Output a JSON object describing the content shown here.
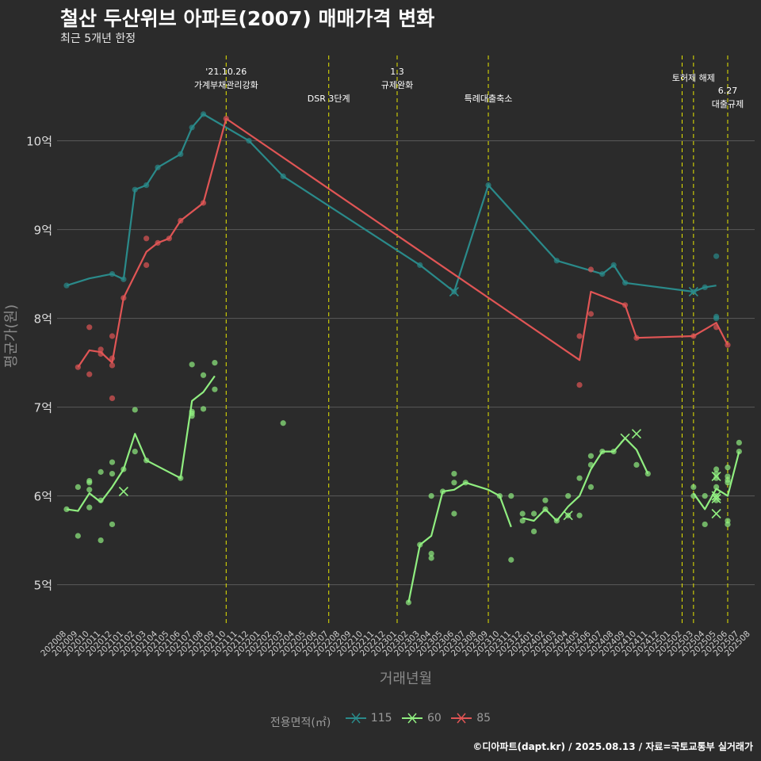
{
  "header": {
    "title": "철산 두산위브 아파트(2007) 매매가격 변화",
    "subtitle": "최근 5개년 한정"
  },
  "caption": "©디아파트(dapt.kr) / 2025.08.13 / 자료=국토교통부 실거래가",
  "legend": {
    "title": "전용면적(㎡)",
    "items": [
      {
        "label": "115",
        "color": "#2a8a8a"
      },
      {
        "label": "60",
        "color": "#90ee80"
      },
      {
        "label": "85",
        "color": "#e05555"
      }
    ]
  },
  "chart_data": {
    "type": "line",
    "xlabel": "거래년월",
    "ylabel": "평균가(원)",
    "ylim": [
      4.55,
      11.05
    ],
    "yticks": [
      {
        "v": 5,
        "label": "5억"
      },
      {
        "v": 6,
        "label": "6억"
      },
      {
        "v": 7,
        "label": "7억"
      },
      {
        "v": 8,
        "label": "8억"
      },
      {
        "v": 9,
        "label": "9억"
      },
      {
        "v": 10,
        "label": "10억"
      }
    ],
    "x_categories": [
      "202008",
      "202009",
      "202010",
      "202011",
      "202012",
      "202101",
      "202102",
      "202103",
      "202104",
      "202105",
      "202106",
      "202107",
      "202108",
      "202109",
      "202110",
      "202111",
      "202112",
      "202201",
      "202202",
      "202203",
      "202204",
      "202205",
      "202206",
      "202207",
      "202208",
      "202209",
      "202210",
      "202211",
      "202212",
      "202301",
      "202302",
      "202303",
      "202304",
      "202305",
      "202306",
      "202307",
      "202308",
      "202309",
      "202310",
      "202311",
      "202312",
      "202401",
      "202402",
      "202403",
      "202404",
      "202405",
      "202406",
      "202407",
      "202408",
      "202409",
      "202410",
      "202411",
      "202412",
      "202501",
      "202502",
      "202503",
      "202504",
      "202505",
      "202506",
      "202507",
      "202508"
    ],
    "grid": true,
    "events": [
      {
        "x": 14,
        "lines": [
          "'21.10.26",
          "가계부채관리강화"
        ],
        "row": 0
      },
      {
        "x": 23,
        "lines": [
          "DSR 3단계"
        ],
        "row": 2
      },
      {
        "x": 29,
        "lines": [
          "1.3",
          "규제완화"
        ],
        "row": 0
      },
      {
        "x": 37,
        "lines": [
          "특례대출축소"
        ],
        "row": 2
      },
      {
        "x": 54,
        "lines": [],
        "row": 1
      },
      {
        "x": 55,
        "lines": [
          "토허제 해제"
        ],
        "row": 1
      },
      {
        "x": 58,
        "lines": [
          "6.27",
          "대출규제"
        ],
        "row": 3
      }
    ],
    "series": [
      {
        "name": "115",
        "color": "#2a8a8a",
        "line": [
          [
            0,
            8.37
          ],
          [
            2,
            8.45
          ],
          [
            4,
            8.5
          ],
          [
            5,
            8.44
          ],
          [
            6,
            9.45
          ],
          [
            7,
            9.5
          ],
          [
            8,
            9.7
          ],
          [
            10,
            9.85
          ],
          [
            11,
            10.15
          ],
          [
            12,
            10.3
          ],
          [
            16,
            10.0
          ],
          [
            19,
            9.6
          ],
          [
            31,
            8.6
          ],
          [
            34,
            8.3
          ],
          [
            37,
            9.5
          ],
          [
            43,
            8.65
          ],
          [
            47,
            8.5
          ],
          [
            48,
            8.6
          ],
          [
            49,
            8.4
          ],
          [
            55,
            8.3
          ],
          [
            56,
            8.35
          ],
          [
            57,
            8.37
          ]
        ],
        "points": [
          [
            0,
            8.37
          ],
          [
            4,
            8.5
          ],
          [
            5,
            8.44
          ],
          [
            6,
            9.45
          ],
          [
            7,
            9.5
          ],
          [
            8,
            9.7
          ],
          [
            10,
            9.85
          ],
          [
            11,
            10.15
          ],
          [
            12,
            10.3
          ],
          [
            16,
            10.0
          ],
          [
            19,
            9.6
          ],
          [
            31,
            8.6
          ],
          [
            34,
            8.3
          ],
          [
            37,
            9.5
          ],
          [
            43,
            8.65
          ],
          [
            47,
            8.5
          ],
          [
            48,
            8.6
          ],
          [
            49,
            8.4
          ],
          [
            55,
            8.3
          ],
          [
            56,
            8.35
          ],
          [
            57,
            8.7
          ],
          [
            57,
            8.02
          ],
          [
            57,
            8.0
          ]
        ],
        "crosses": [
          [
            34,
            8.3
          ],
          [
            55,
            8.3
          ]
        ]
      },
      {
        "name": "60",
        "color": "#90ee80",
        "line": [
          [
            0,
            5.85
          ],
          [
            1,
            5.83
          ],
          [
            2,
            6.03
          ],
          [
            3,
            5.93
          ],
          [
            4,
            6.1
          ],
          [
            5,
            6.3
          ],
          [
            6,
            6.7
          ],
          [
            7,
            6.4
          ],
          [
            10,
            6.2
          ],
          [
            11,
            7.07
          ],
          [
            12,
            7.17
          ],
          [
            13,
            7.35
          ]
        ],
        "line2": [
          [
            30,
            4.8
          ],
          [
            31,
            5.45
          ],
          [
            32,
            5.55
          ],
          [
            33,
            6.05
          ],
          [
            34,
            6.07
          ],
          [
            35,
            6.15
          ],
          [
            37,
            6.07
          ],
          [
            38,
            6.0
          ],
          [
            39,
            5.65
          ]
        ],
        "line3": [
          [
            40,
            5.75
          ],
          [
            41,
            5.72
          ],
          [
            42,
            5.85
          ],
          [
            43,
            5.72
          ],
          [
            44,
            5.88
          ],
          [
            45,
            6.0
          ],
          [
            46,
            6.3
          ],
          [
            47,
            6.5
          ],
          [
            48,
            6.5
          ],
          [
            49,
            6.65
          ],
          [
            50,
            6.52
          ],
          [
            51,
            6.25
          ]
        ],
        "line4": [
          [
            55,
            6.03
          ],
          [
            56,
            5.85
          ],
          [
            57,
            6.08
          ],
          [
            58,
            6.0
          ],
          [
            59,
            6.5
          ]
        ],
        "points": [
          [
            0,
            5.85
          ],
          [
            1,
            6.1
          ],
          [
            1,
            5.55
          ],
          [
            2,
            6.15
          ],
          [
            2,
            6.17
          ],
          [
            2,
            6.07
          ],
          [
            2,
            5.87
          ],
          [
            3,
            6.27
          ],
          [
            3,
            5.5
          ],
          [
            3,
            5.95
          ],
          [
            4,
            6.38
          ],
          [
            4,
            6.25
          ],
          [
            4,
            5.68
          ],
          [
            5,
            6.3
          ],
          [
            6,
            6.97
          ],
          [
            6,
            6.5
          ],
          [
            7,
            6.4
          ],
          [
            10,
            6.2
          ],
          [
            11,
            6.93
          ],
          [
            11,
            6.9
          ],
          [
            11,
            6.95
          ],
          [
            11,
            7.48
          ],
          [
            12,
            7.36
          ],
          [
            12,
            6.98
          ],
          [
            13,
            7.5
          ],
          [
            13,
            7.2
          ],
          [
            19,
            6.82
          ],
          [
            30,
            4.8
          ],
          [
            31,
            5.45
          ],
          [
            32,
            6.0
          ],
          [
            32,
            5.35
          ],
          [
            32,
            5.3
          ],
          [
            33,
            6.05
          ],
          [
            34,
            6.25
          ],
          [
            34,
            6.15
          ],
          [
            34,
            5.8
          ],
          [
            35,
            6.15
          ],
          [
            38,
            6.0
          ],
          [
            39,
            6.0
          ],
          [
            39,
            5.28
          ],
          [
            40,
            5.8
          ],
          [
            40,
            5.72
          ],
          [
            41,
            5.8
          ],
          [
            41,
            5.6
          ],
          [
            42,
            5.95
          ],
          [
            42,
            5.85
          ],
          [
            43,
            5.72
          ],
          [
            44,
            5.78
          ],
          [
            44,
            6.0
          ],
          [
            45,
            6.2
          ],
          [
            45,
            5.78
          ],
          [
            46,
            6.45
          ],
          [
            46,
            6.35
          ],
          [
            46,
            6.1
          ],
          [
            47,
            6.5
          ],
          [
            48,
            6.5
          ],
          [
            50,
            6.35
          ],
          [
            51,
            6.25
          ],
          [
            55,
            6.1
          ],
          [
            55,
            6.0
          ],
          [
            56,
            6.0
          ],
          [
            56,
            5.68
          ],
          [
            57,
            6.3
          ],
          [
            57,
            6.25
          ],
          [
            57,
            6.2
          ],
          [
            57,
            6.1
          ],
          [
            57,
            6.0
          ],
          [
            57,
            5.95
          ],
          [
            58,
            6.32
          ],
          [
            58,
            6.22
          ],
          [
            58,
            6.18
          ],
          [
            58,
            6.15
          ],
          [
            58,
            5.72
          ],
          [
            58,
            5.68
          ],
          [
            59,
            6.6
          ],
          [
            59,
            6.5
          ]
        ],
        "crosses": [
          [
            5,
            6.05
          ],
          [
            44,
            5.78
          ],
          [
            49,
            6.65
          ],
          [
            50,
            6.7
          ],
          [
            57,
            6.22
          ],
          [
            57,
            6.0
          ],
          [
            57,
            5.97
          ],
          [
            57,
            5.8
          ]
        ]
      },
      {
        "name": "85",
        "color": "#e05555",
        "line": [
          [
            1,
            7.45
          ],
          [
            2,
            7.64
          ],
          [
            3,
            7.62
          ],
          [
            4,
            7.5
          ],
          [
            5,
            8.23
          ],
          [
            7,
            8.75
          ],
          [
            8,
            8.85
          ],
          [
            9,
            8.9
          ],
          [
            10,
            9.1
          ],
          [
            12,
            9.3
          ],
          [
            14,
            10.25
          ],
          [
            45,
            7.53
          ],
          [
            46,
            8.3
          ],
          [
            49,
            8.15
          ],
          [
            50,
            7.78
          ],
          [
            55,
            7.8
          ],
          [
            57,
            7.95
          ],
          [
            58,
            7.7
          ]
        ],
        "points": [
          [
            1,
            7.45
          ],
          [
            2,
            7.9
          ],
          [
            2,
            7.37
          ],
          [
            3,
            7.65
          ],
          [
            3,
            7.6
          ],
          [
            4,
            7.8
          ],
          [
            4,
            7.55
          ],
          [
            4,
            7.47
          ],
          [
            4,
            7.1
          ],
          [
            5,
            8.23
          ],
          [
            7,
            8.9
          ],
          [
            7,
            8.6
          ],
          [
            8,
            8.85
          ],
          [
            9,
            8.9
          ],
          [
            10,
            9.1
          ],
          [
            12,
            9.3
          ],
          [
            14,
            10.25
          ],
          [
            45,
            7.8
          ],
          [
            45,
            7.25
          ],
          [
            46,
            8.55
          ],
          [
            46,
            8.05
          ],
          [
            49,
            8.15
          ],
          [
            50,
            7.78
          ],
          [
            55,
            7.8
          ],
          [
            57,
            7.9
          ],
          [
            58,
            7.7
          ]
        ],
        "crosses": []
      }
    ]
  }
}
